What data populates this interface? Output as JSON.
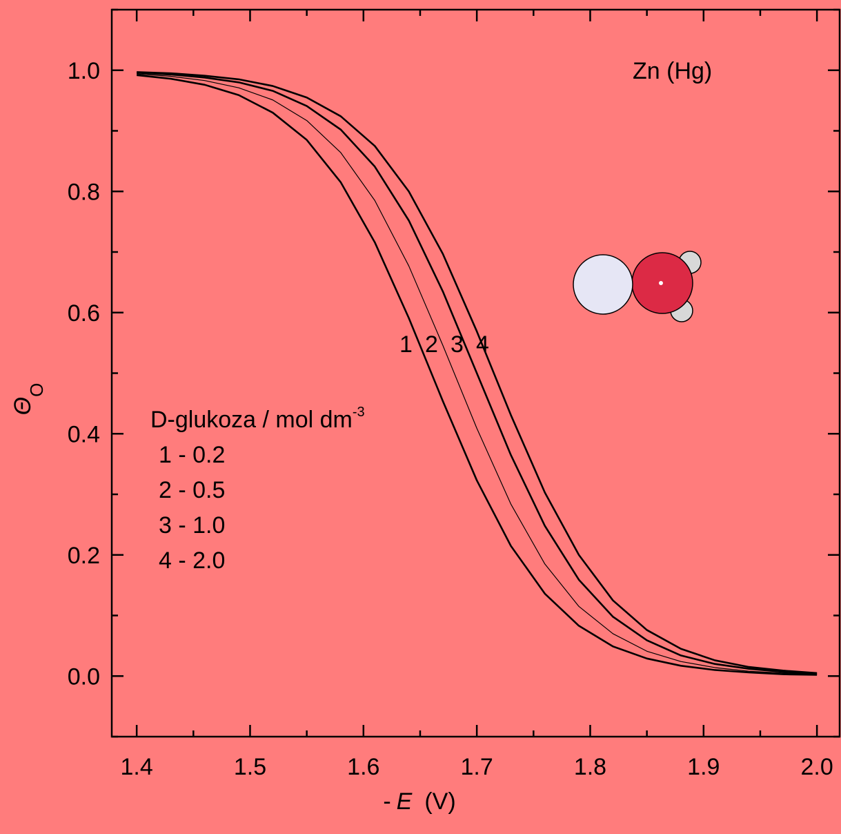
{
  "chart_data": {
    "type": "line",
    "x_label": {
      "prefix": "-",
      "symbol": "E",
      "unit": "(V)"
    },
    "y_label": {
      "symbol": "Θ",
      "subscript": "O"
    },
    "annotations": {
      "title": "Zn (Hg)",
      "legend_heading": "D-glukoza / mol dm",
      "legend_heading_sup": "-3",
      "legend_lines": [
        "1 - 0.2",
        "2 - 0.5",
        "3 - 1.0",
        "4 - 2.0"
      ]
    },
    "x": [
      1.4,
      1.43,
      1.46,
      1.49,
      1.52,
      1.55,
      1.58,
      1.61,
      1.64,
      1.67,
      1.7,
      1.73,
      1.76,
      1.79,
      1.82,
      1.85,
      1.88,
      1.91,
      1.94,
      1.97,
      2.0
    ],
    "series": [
      {
        "name": "1",
        "color": "#000000",
        "line_width": 2.6,
        "values": [
          0.992,
          0.986,
          0.976,
          0.959,
          0.93,
          0.885,
          0.815,
          0.716,
          0.591,
          0.454,
          0.323,
          0.215,
          0.136,
          0.083,
          0.049,
          0.029,
          0.017,
          0.01,
          0.006,
          0.003,
          0.002
        ]
      },
      {
        "name": "2",
        "color": "#000000",
        "line_width": 1.2,
        "values": [
          0.994,
          0.99,
          0.983,
          0.971,
          0.951,
          0.917,
          0.864,
          0.785,
          0.677,
          0.546,
          0.409,
          0.284,
          0.185,
          0.115,
          0.07,
          0.041,
          0.024,
          0.014,
          0.008,
          0.005,
          0.003
        ]
      },
      {
        "name": "3",
        "color": "#000000",
        "line_width": 2.6,
        "values": [
          0.996,
          0.993,
          0.988,
          0.98,
          0.966,
          0.941,
          0.902,
          0.841,
          0.752,
          0.635,
          0.5,
          0.365,
          0.248,
          0.159,
          0.098,
          0.059,
          0.034,
          0.02,
          0.012,
          0.007,
          0.004
        ]
      },
      {
        "name": "4",
        "color": "#000000",
        "line_width": 2.6,
        "values": [
          0.997,
          0.995,
          0.991,
          0.985,
          0.974,
          0.955,
          0.924,
          0.875,
          0.8,
          0.697,
          0.569,
          0.431,
          0.303,
          0.2,
          0.125,
          0.076,
          0.045,
          0.026,
          0.015,
          0.009,
          0.005
        ]
      }
    ],
    "xlim": [
      1.378,
      2.02
    ],
    "ylim": [
      -0.1,
      1.1
    ],
    "xticks": [
      1.4,
      1.5,
      1.6,
      1.7,
      1.8,
      1.9,
      {
        "value": 2,
        "label": "2.0"
      }
    ],
    "yticks": [
      {
        "value": 0,
        "label": "0.0"
      },
      0.2,
      0.4,
      0.6,
      0.8,
      {
        "value": 1,
        "label": "1.0"
      }
    ],
    "xminorticks": [
      1.45,
      1.55,
      1.65,
      1.75,
      1.85,
      1.95
    ],
    "yminorticks": [
      -0.1,
      0.1,
      0.3,
      0.5,
      0.7,
      0.9,
      1.1
    ],
    "grid": false,
    "background": "#ff7c7c"
  }
}
